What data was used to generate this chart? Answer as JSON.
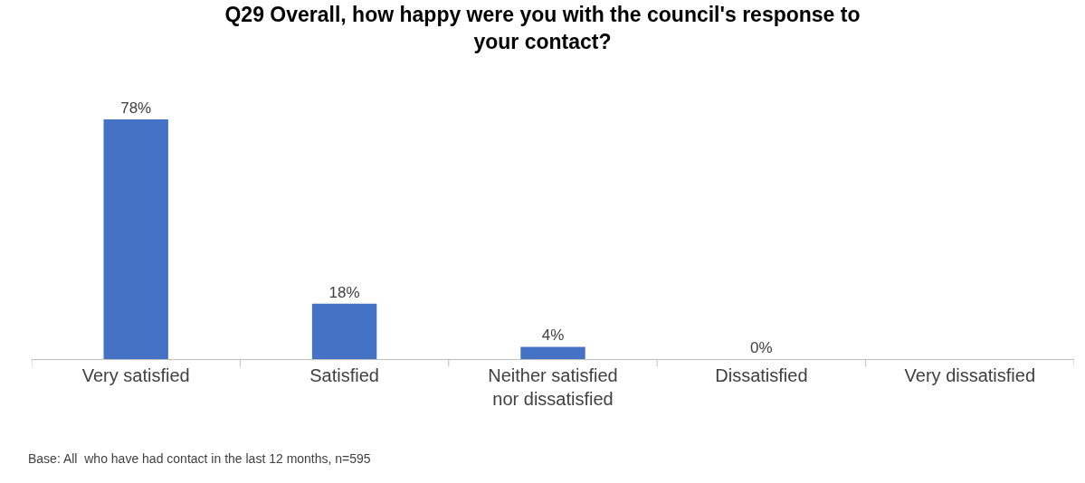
{
  "chart_data": {
    "type": "bar",
    "title": "Q29 Overall, how happy were you with the council's response to your contact?",
    "categories": [
      "Very satisfied",
      "Satisfied",
      "Neither satisfied nor dissatisfied",
      "Dissatisfied",
      "Very dissatisfied"
    ],
    "values": [
      78,
      18,
      4,
      0,
      0
    ],
    "color": "#4472c4",
    "value_labels": [
      "78%",
      "18%",
      "4%",
      "0%",
      null
    ],
    "annotations": [
      "Base: All  who have had contact in the last 12 months, n=595"
    ]
  }
}
